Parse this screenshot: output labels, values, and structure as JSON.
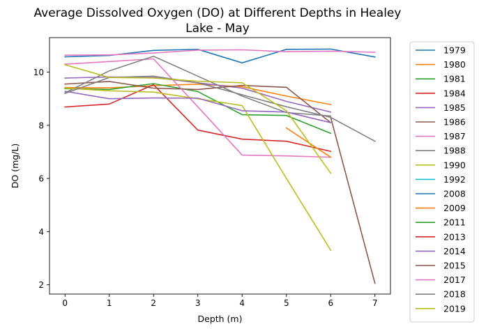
{
  "chart_data": {
    "type": "line",
    "title": "Average Dissolved Oxygen (DO) at Different Depths in Healey Lake - May",
    "title_lines": [
      "Average Dissolved Oxygen (DO) at Different Depths in Healey",
      "Lake - May"
    ],
    "xlabel": "Depth (m)",
    "ylabel": "DO (mg/L)",
    "xlim": [
      -0.35,
      7.35
    ],
    "ylim": [
      1.65,
      11.3
    ],
    "xticks": [
      0,
      1,
      2,
      3,
      4,
      5,
      6,
      7
    ],
    "yticks": [
      2,
      4,
      6,
      8,
      10
    ],
    "grid": false,
    "legend_position": "outside-right",
    "series": [
      {
        "name": "1979",
        "color": "#1f77b4",
        "x": [
          0,
          1,
          2,
          3,
          4,
          5,
          6,
          7
        ],
        "y": [
          10.58,
          10.63,
          10.82,
          10.86,
          10.35,
          10.86,
          10.87,
          10.57
        ]
      },
      {
        "name": "1980",
        "color": "#ff7f0e",
        "x": [
          0,
          1,
          2,
          3,
          4,
          5,
          6
        ],
        "y": [
          9.42,
          9.41,
          9.49,
          9.55,
          9.45,
          9.1,
          8.78
        ]
      },
      {
        "name": "1981",
        "color": "#2ca02c",
        "x": [
          0,
          1,
          2,
          3,
          4,
          5,
          6
        ],
        "y": [
          9.38,
          9.35,
          9.57,
          9.27,
          8.4,
          8.37,
          7.7
        ]
      },
      {
        "name": "1984",
        "color": "#d62728",
        "x": [
          0,
          1,
          2,
          3,
          4,
          5,
          6
        ],
        "y": [
          8.69,
          8.8,
          9.53,
          7.82,
          7.48,
          7.4,
          7.02
        ]
      },
      {
        "name": "1985",
        "color": "#9467bd",
        "x": [
          0,
          1,
          2,
          3,
          4,
          5,
          6
        ],
        "y": [
          9.78,
          9.82,
          9.8,
          9.6,
          9.4,
          8.9,
          8.5
        ]
      },
      {
        "name": "1986",
        "color": "#8c564b",
        "x": [
          0,
          1,
          2,
          3,
          4,
          5,
          6
        ],
        "y": [
          9.55,
          9.65,
          9.4,
          9.35,
          9.5,
          9.43,
          8.1
        ]
      },
      {
        "name": "1987",
        "color": "#e377c2",
        "x": [
          0,
          1,
          2,
          3,
          4,
          5,
          6
        ],
        "y": [
          10.3,
          10.4,
          10.5,
          8.7,
          6.88,
          6.85,
          6.8
        ]
      },
      {
        "name": "1988",
        "color": "#7f7f7f",
        "x": [
          0,
          1,
          2,
          3,
          4,
          5,
          6
        ],
        "y": [
          9.22,
          10.05,
          10.6,
          9.85,
          9.1,
          8.48,
          8.35
        ]
      },
      {
        "name": "1990",
        "color": "#bcbd22",
        "x": [
          0,
          1,
          2,
          3,
          4,
          5,
          6
        ],
        "y": [
          9.4,
          9.3,
          9.25,
          9.0,
          8.74,
          6.0,
          3.3
        ]
      },
      {
        "name": "1992",
        "color": "#17becf",
        "x": [],
        "y": []
      },
      {
        "name": "2008",
        "color": "#1f77b4",
        "x": [],
        "y": []
      },
      {
        "name": "2009",
        "color": "#ff7f0e",
        "x": [
          5,
          6
        ],
        "y": [
          7.9,
          6.8
        ]
      },
      {
        "name": "2011",
        "color": "#2ca02c",
        "x": [],
        "y": []
      },
      {
        "name": "2013",
        "color": "#d62728",
        "x": [],
        "y": []
      },
      {
        "name": "2014",
        "color": "#9467bd",
        "x": [
          0,
          1,
          2,
          3,
          4,
          5,
          6
        ],
        "y": [
          9.28,
          9.0,
          9.03,
          9.02,
          8.55,
          8.5,
          8.1
        ]
      },
      {
        "name": "2015",
        "color": "#8c564b",
        "x": [
          6,
          7
        ],
        "y": [
          8.3,
          2.05
        ]
      },
      {
        "name": "2017",
        "color": "#e377c2",
        "x": [
          0,
          1,
          2,
          3,
          4,
          5,
          6,
          7
        ],
        "y": [
          10.64,
          10.65,
          10.72,
          10.83,
          10.84,
          10.77,
          10.79,
          10.75
        ]
      },
      {
        "name": "2018",
        "color": "#7f7f7f",
        "x": [
          0,
          1,
          2,
          3,
          4,
          5,
          6,
          7
        ],
        "y": [
          9.2,
          9.8,
          9.85,
          9.6,
          9.15,
          8.7,
          8.3,
          7.4
        ]
      },
      {
        "name": "2019",
        "color": "#bcbd22",
        "x": [
          0,
          1,
          2,
          3,
          4,
          5,
          6
        ],
        "y": [
          10.28,
          9.8,
          9.78,
          9.66,
          9.6,
          8.55,
          6.2
        ]
      }
    ]
  }
}
